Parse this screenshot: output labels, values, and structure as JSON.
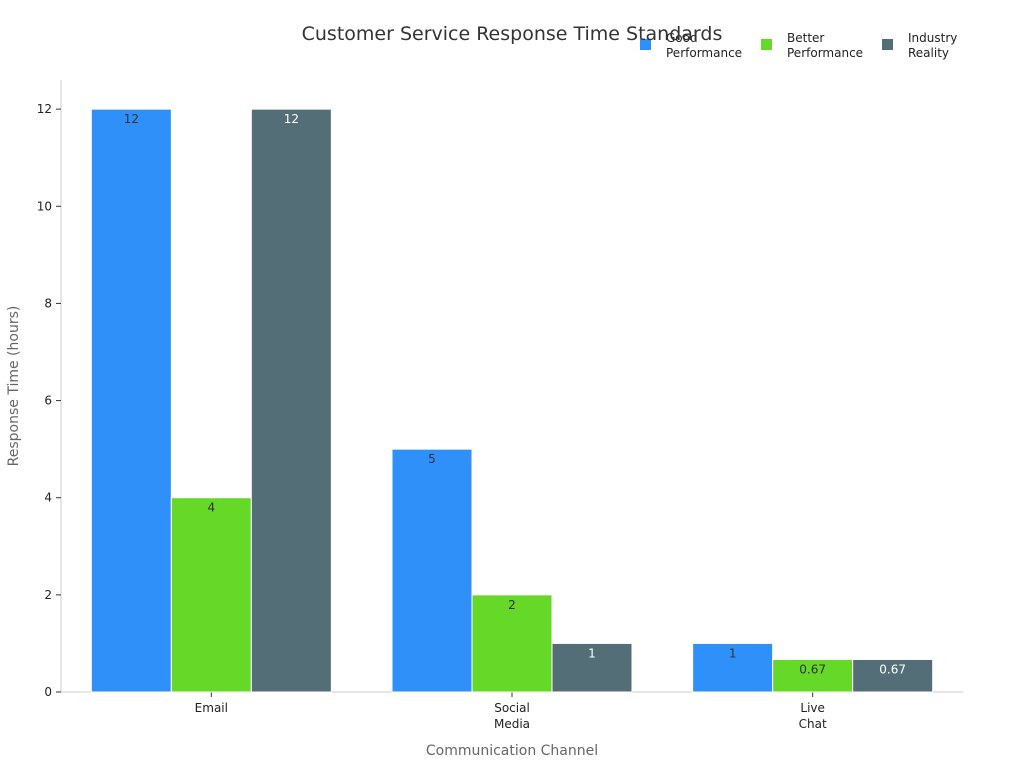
{
  "chart_data": {
    "type": "bar",
    "title": "Customer Service Response Time Standards",
    "xlabel": "Communication Channel",
    "ylabel": "Response Time (hours)",
    "categories": [
      [
        "Email"
      ],
      [
        "Social",
        "Media"
      ],
      [
        "Live",
        "Chat"
      ]
    ],
    "series": [
      {
        "name": [
          "Good",
          "Performance"
        ],
        "values": [
          12,
          5,
          1
        ],
        "color": "#2e90f8",
        "label_color": "#333333"
      },
      {
        "name": [
          "Better",
          "Performance"
        ],
        "values": [
          4,
          2,
          0.67
        ],
        "color": "#66d828",
        "label_color": "#333333"
      },
      {
        "name": [
          "Industry",
          "Reality"
        ],
        "values": [
          12,
          1,
          0.67
        ],
        "color": "#546e78",
        "label_color": "#ffffff"
      }
    ],
    "ylim": [
      0,
      12.6
    ],
    "yticks": [
      0,
      2,
      4,
      6,
      8,
      10,
      12
    ],
    "grid": false,
    "legend_position": "top-right"
  }
}
